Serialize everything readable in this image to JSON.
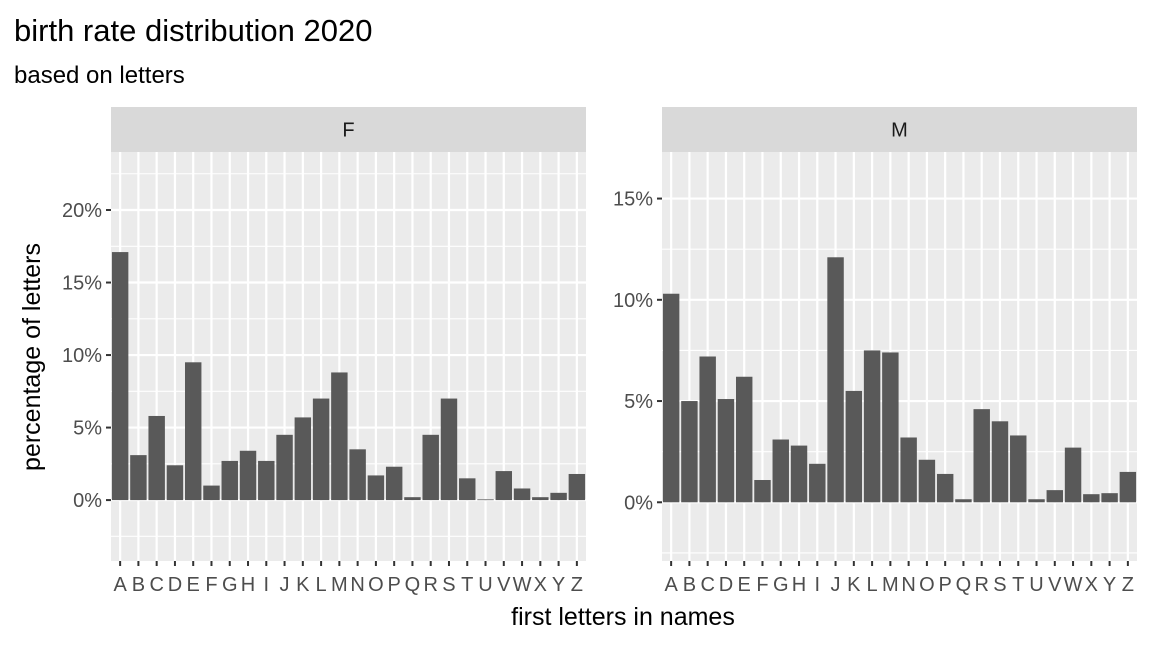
{
  "chart_data": {
    "type": "bar",
    "title": "birth rate distribution 2020",
    "subtitle": "based on letters",
    "xlabel": "first letters in names",
    "ylabel": "percentage of letters",
    "categories": [
      "A",
      "B",
      "C",
      "D",
      "E",
      "F",
      "G",
      "H",
      "I",
      "J",
      "K",
      "L",
      "M",
      "N",
      "O",
      "P",
      "Q",
      "R",
      "S",
      "T",
      "U",
      "V",
      "W",
      "X",
      "Y",
      "Z"
    ],
    "grid": true,
    "colors": {
      "bar": "#595959",
      "panel": "#ebebeb",
      "strip": "#d9d9d9",
      "grid": "#ffffff"
    },
    "facets": [
      {
        "label": "F",
        "ylim": [
          -4.2,
          24
        ],
        "yticks": [
          0,
          5,
          10,
          15,
          20
        ],
        "ytick_labels": [
          "0%",
          "5%",
          "10%",
          "15%",
          "20%"
        ],
        "values": [
          17.1,
          3.1,
          5.8,
          2.4,
          9.5,
          1.0,
          2.7,
          3.4,
          2.7,
          4.5,
          5.7,
          7.0,
          8.8,
          3.5,
          1.7,
          2.3,
          0.2,
          4.5,
          7.0,
          1.5,
          0.05,
          2.0,
          0.8,
          0.2,
          0.5,
          1.8
        ]
      },
      {
        "label": "M",
        "ylim": [
          -2.9,
          17.3
        ],
        "yticks": [
          0,
          5,
          10,
          15
        ],
        "ytick_labels": [
          "0%",
          "5%",
          "10%",
          "15%"
        ],
        "values": [
          10.3,
          5.0,
          7.2,
          5.1,
          6.2,
          1.1,
          3.1,
          2.8,
          1.9,
          12.1,
          5.5,
          7.5,
          7.4,
          3.2,
          2.1,
          1.4,
          0.15,
          4.6,
          4.0,
          3.3,
          0.15,
          0.6,
          2.7,
          0.4,
          0.45,
          1.5
        ]
      }
    ]
  }
}
